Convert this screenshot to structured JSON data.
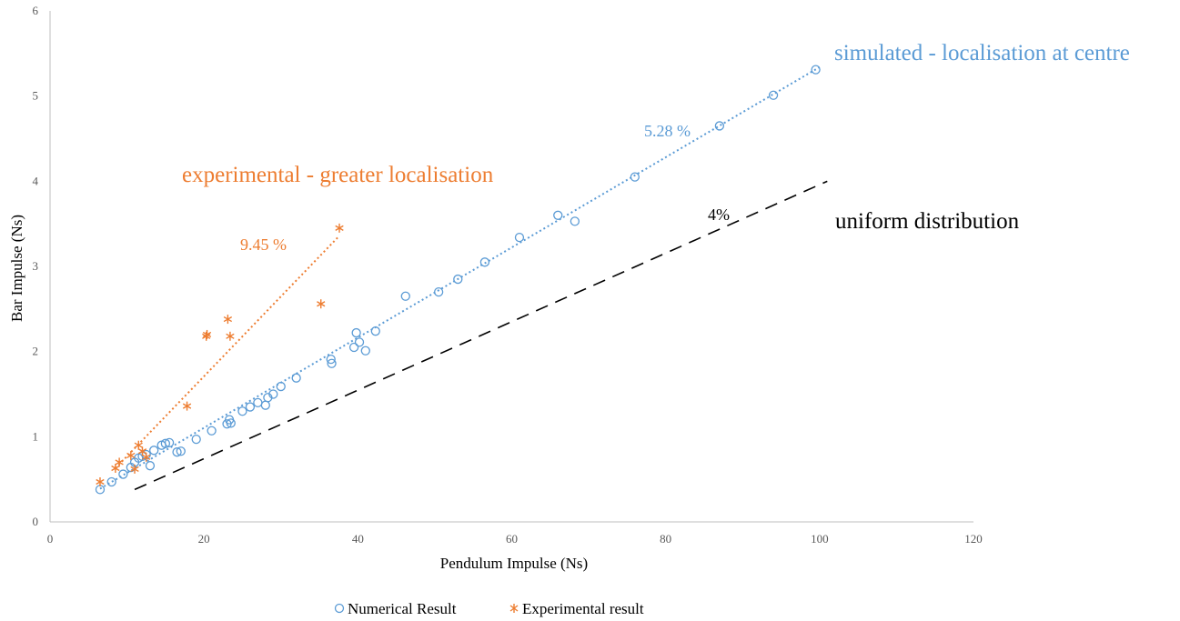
{
  "chart_data": {
    "type": "scatter",
    "xlabel": "Pendulum Impulse (Ns)",
    "ylabel": "Bar Impulse (Ns)",
    "xlim": [
      0,
      120
    ],
    "ylim": [
      0,
      6
    ],
    "xticks": [
      "0",
      "20",
      "40",
      "60",
      "80",
      "100",
      "120"
    ],
    "yticks": [
      "0",
      "1",
      "2",
      "3",
      "4",
      "5",
      "6"
    ],
    "grid": false,
    "legend_position": "bottom",
    "series": [
      {
        "name": "Numerical Result",
        "marker": "circle",
        "color": "#5B9BD5",
        "points": [
          [
            6.5,
            0.38
          ],
          [
            8,
            0.47
          ],
          [
            9.5,
            0.56
          ],
          [
            10.5,
            0.64
          ],
          [
            11,
            0.7
          ],
          [
            11.5,
            0.75
          ],
          [
            12,
            0.77
          ],
          [
            12.5,
            0.79
          ],
          [
            13,
            0.66
          ],
          [
            13.5,
            0.84
          ],
          [
            14.5,
            0.9
          ],
          [
            15,
            0.92
          ],
          [
            15.5,
            0.93
          ],
          [
            16.5,
            0.82
          ],
          [
            17,
            0.83
          ],
          [
            19,
            0.97
          ],
          [
            21,
            1.07
          ],
          [
            23,
            1.15
          ],
          [
            23.3,
            1.2
          ],
          [
            23.5,
            1.16
          ],
          [
            25,
            1.3
          ],
          [
            26,
            1.35
          ],
          [
            27,
            1.4
          ],
          [
            28,
            1.37
          ],
          [
            28.3,
            1.46
          ],
          [
            29,
            1.5
          ],
          [
            30,
            1.59
          ],
          [
            32,
            1.69
          ],
          [
            36.5,
            1.91
          ],
          [
            36.6,
            1.86
          ],
          [
            39.5,
            2.05
          ],
          [
            39.8,
            2.22
          ],
          [
            40.2,
            2.11
          ],
          [
            41,
            2.01
          ],
          [
            42.3,
            2.24
          ],
          [
            46.2,
            2.65
          ],
          [
            50.5,
            2.7
          ],
          [
            53,
            2.85
          ],
          [
            56.5,
            3.05
          ],
          [
            61,
            3.34
          ],
          [
            66,
            3.6
          ],
          [
            68.2,
            3.53
          ],
          [
            76,
            4.05
          ],
          [
            87,
            4.65
          ],
          [
            94,
            5.01
          ],
          [
            99.5,
            5.31
          ]
        ]
      },
      {
        "name": "Experimental result",
        "marker": "asterisk",
        "color": "#ED7D31",
        "points": [
          [
            6.5,
            0.47
          ],
          [
            8.5,
            0.63
          ],
          [
            9,
            0.7
          ],
          [
            10.5,
            0.78
          ],
          [
            11,
            0.62
          ],
          [
            11.5,
            0.9
          ],
          [
            12,
            0.83
          ],
          [
            12.5,
            0.76
          ],
          [
            17.8,
            1.36
          ],
          [
            20.3,
            2.18
          ],
          [
            20.4,
            2.2
          ],
          [
            23.1,
            2.38
          ],
          [
            23.4,
            2.18
          ],
          [
            35.2,
            2.56
          ],
          [
            37.6,
            3.45
          ]
        ]
      }
    ],
    "trendlines": [
      {
        "series": "Numerical Result",
        "style": "dotted",
        "color": "#5B9BD5",
        "x": [
          6.5,
          100
        ],
        "y": [
          0.39,
          5.34
        ]
      },
      {
        "series": "Experimental result",
        "style": "dotted",
        "color": "#ED7D31",
        "x": [
          8.5,
          37.5
        ],
        "y": [
          0.63,
          3.35
        ]
      },
      {
        "series": "uniform distribution",
        "style": "dashed",
        "color": "#000000",
        "x": [
          11,
          101
        ],
        "y": [
          0.38,
          4.0
        ]
      }
    ],
    "annotations": [
      {
        "text": "simulated - localisation at centre",
        "color": "#5B9BD5",
        "size": "large"
      },
      {
        "text": "experimental - greater localisation",
        "color": "#ED7D31",
        "size": "large"
      },
      {
        "text": "uniform distribution",
        "color": "#000000",
        "size": "large"
      },
      {
        "text": "5.28 %",
        "color": "#5B9BD5",
        "size": "medium"
      },
      {
        "text": "9.45 %",
        "color": "#ED7D31",
        "size": "medium"
      },
      {
        "text": "4%",
        "color": "#000000",
        "size": "medium"
      }
    ]
  }
}
